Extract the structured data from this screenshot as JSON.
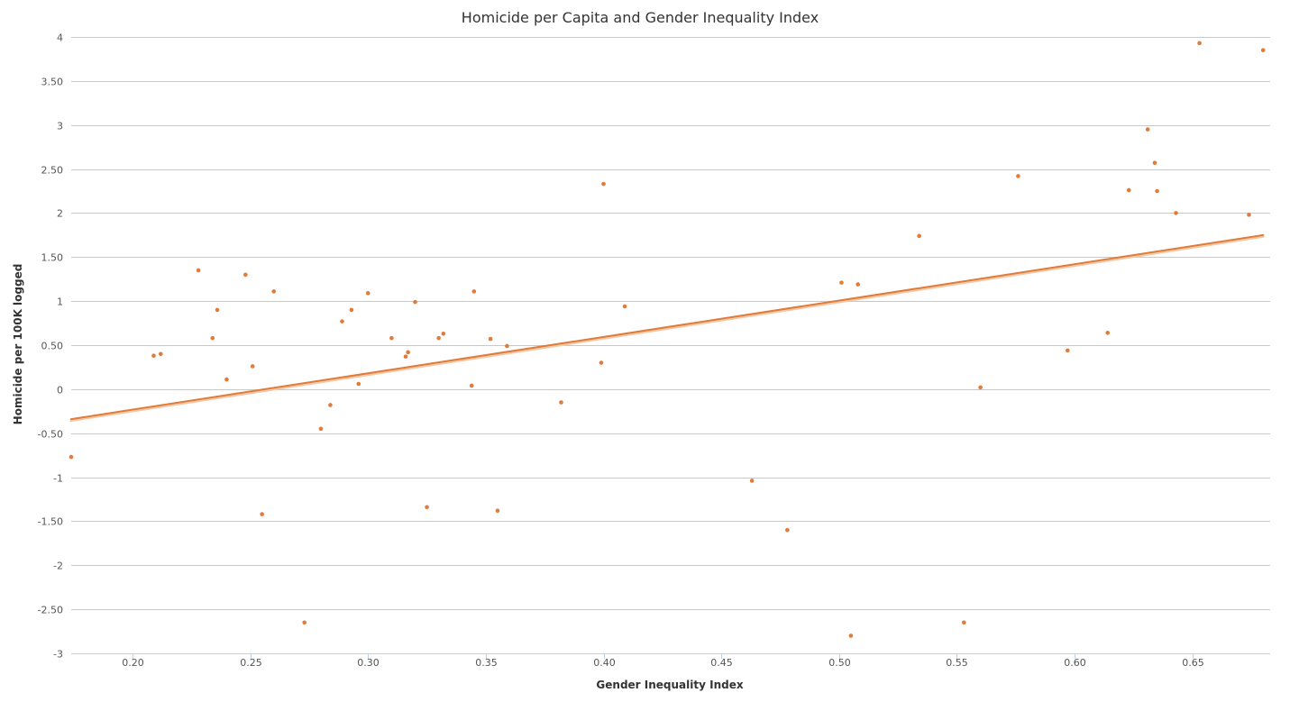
{
  "chart_data": {
    "type": "scatter",
    "title": "Homicide per Capita and Gender Inequality Index",
    "xlabel": "Gender Inequality Index",
    "ylabel": "Homicide per 100K logged",
    "xlim": [
      0.174,
      0.683
    ],
    "ylim": [
      -3,
      4
    ],
    "x_ticks": [
      "0.20",
      "0.25",
      "0.30",
      "0.35",
      "0.40",
      "0.45",
      "0.50",
      "0.55",
      "0.60",
      "0.65"
    ],
    "x_tick_values": [
      0.2,
      0.25,
      0.3,
      0.35,
      0.4,
      0.45,
      0.5,
      0.55,
      0.6,
      0.65
    ],
    "y_ticks": [
      "4",
      "3.50",
      "3",
      "2.50",
      "2",
      "1.50",
      "1",
      "0.50",
      "0",
      "-0.50",
      "-1",
      "-1.50",
      "-2",
      "-2.50",
      "-3"
    ],
    "y_tick_values": [
      4,
      3.5,
      3,
      2.5,
      2,
      1.5,
      1,
      0.5,
      0,
      -0.5,
      -1,
      -1.5,
      -2,
      -2.5,
      -3
    ],
    "grid": true,
    "legend": "none",
    "point_color": "#e07b39",
    "line_color": "#e07b39",
    "series": [
      {
        "type": "scatter",
        "points": [
          [
            0.174,
            -0.77
          ],
          [
            0.209,
            0.38
          ],
          [
            0.212,
            0.4
          ],
          [
            0.228,
            1.35
          ],
          [
            0.234,
            0.58
          ],
          [
            0.236,
            0.9
          ],
          [
            0.24,
            0.11
          ],
          [
            0.248,
            1.3
          ],
          [
            0.251,
            0.26
          ],
          [
            0.255,
            -1.42
          ],
          [
            0.26,
            1.11
          ],
          [
            0.273,
            -2.65
          ],
          [
            0.28,
            -0.45
          ],
          [
            0.284,
            -0.18
          ],
          [
            0.289,
            0.77
          ],
          [
            0.293,
            0.9
          ],
          [
            0.296,
            0.06
          ],
          [
            0.3,
            1.09
          ],
          [
            0.31,
            0.58
          ],
          [
            0.316,
            0.37
          ],
          [
            0.317,
            0.42
          ],
          [
            0.32,
            0.99
          ],
          [
            0.325,
            -1.34
          ],
          [
            0.33,
            0.58
          ],
          [
            0.332,
            0.63
          ],
          [
            0.344,
            0.04
          ],
          [
            0.345,
            1.11
          ],
          [
            0.352,
            0.57
          ],
          [
            0.355,
            -1.38
          ],
          [
            0.359,
            0.49
          ],
          [
            0.382,
            -0.15
          ],
          [
            0.399,
            0.3
          ],
          [
            0.4,
            2.33
          ],
          [
            0.409,
            0.94
          ],
          [
            0.463,
            -1.04
          ],
          [
            0.478,
            -1.6
          ],
          [
            0.501,
            1.21
          ],
          [
            0.505,
            -2.8
          ],
          [
            0.508,
            1.19
          ],
          [
            0.534,
            1.74
          ],
          [
            0.553,
            -2.65
          ],
          [
            0.56,
            0.02
          ],
          [
            0.576,
            2.42
          ],
          [
            0.597,
            0.44
          ],
          [
            0.614,
            0.64
          ],
          [
            0.623,
            2.26
          ],
          [
            0.631,
            2.95
          ],
          [
            0.634,
            2.57
          ],
          [
            0.635,
            2.25
          ],
          [
            0.643,
            2.0
          ],
          [
            0.653,
            3.93
          ],
          [
            0.674,
            1.98
          ],
          [
            0.68,
            3.85
          ]
        ]
      },
      {
        "type": "line",
        "name": "trend",
        "points": [
          [
            0.174,
            -0.34
          ],
          [
            0.68,
            1.75
          ]
        ]
      }
    ]
  }
}
